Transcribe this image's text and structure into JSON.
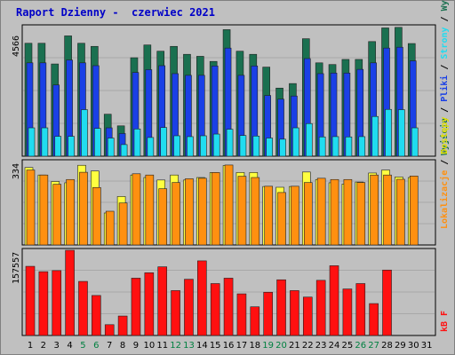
{
  "title": "Raport Dzienny -  czerwiec 2021",
  "colors": {
    "background": "#c0c0c0",
    "title": "#0000c8",
    "visits": "#1a7050",
    "pages": "#1a40e6",
    "hits": "#20dcf0",
    "locations": "#ff9010",
    "accesses": "#ffff40",
    "kb": "#ff1010",
    "weekend_day": "#008040",
    "weekday": "#000000"
  },
  "panel1": {
    "max_label": "4566",
    "legend": [
      "Wyjścia",
      "Pliki",
      "Strony",
      "Wywołania"
    ],
    "legend_colors": [
      "#1a7050",
      "#1a40e6",
      "#20dcf0",
      "#1a7050"
    ]
  },
  "panel2": {
    "max_label": "334",
    "legend": [
      "Lokalizacje",
      "Dostępy"
    ],
    "legend_colors": [
      "#ff9010",
      "#e0e000"
    ]
  },
  "panel3": {
    "max_label": "157557",
    "legend": [
      "kB F"
    ],
    "legend_colors": [
      "#ff1010"
    ]
  },
  "chart_data": [
    {
      "type": "bar",
      "title": "Raport Dzienny -  czerwiec 2021",
      "ymax": 4566,
      "categories": [
        "1",
        "2",
        "3",
        "4",
        "5",
        "6",
        "7",
        "8",
        "9",
        "10",
        "11",
        "12",
        "13",
        "14",
        "15",
        "16",
        "17",
        "18",
        "19",
        "20",
        "21",
        "22",
        "23",
        "24",
        "25",
        "26",
        "27",
        "28",
        "29",
        "30",
        "31"
      ],
      "series": [
        {
          "name": "Wywołania",
          "values": [
            3980,
            3980,
            3250,
            4240,
            3980,
            3870,
            1480,
            1070,
            3470,
            3920,
            3700,
            3870,
            3590,
            3520,
            3340,
            4460,
            3700,
            3590,
            3140,
            2400,
            2560,
            4140,
            3290,
            3230,
            3410,
            3410,
            4040,
            4520,
            4540,
            3970,
            null
          ]
        },
        {
          "name": "Pliki",
          "values": [
            3290,
            3290,
            2510,
            3390,
            3290,
            3190,
            1000,
            800,
            2950,
            3050,
            3190,
            2910,
            2850,
            2850,
            3180,
            3810,
            2850,
            3180,
            2140,
            2010,
            2120,
            3440,
            2910,
            2930,
            2930,
            3060,
            3290,
            3810,
            3840,
            3360,
            null
          ]
        },
        {
          "name": "Strony",
          "values": [
            1000,
            1000,
            700,
            700,
            1640,
            980,
            640,
            410,
            960,
            660,
            1010,
            720,
            690,
            720,
            780,
            950,
            730,
            710,
            640,
            600,
            1000,
            1150,
            680,
            690,
            680,
            690,
            1400,
            1650,
            1640,
            1000,
            null
          ]
        }
      ]
    },
    {
      "type": "bar",
      "ymax": 334,
      "categories": [
        "1",
        "2",
        "3",
        "4",
        "5",
        "6",
        "7",
        "8",
        "9",
        "10",
        "11",
        "12",
        "13",
        "14",
        "15",
        "16",
        "17",
        "18",
        "19",
        "20",
        "21",
        "22",
        "23",
        "24",
        "25",
        "26",
        "27",
        "28",
        "29",
        "30",
        "31"
      ],
      "series": [
        {
          "name": "Dostępy",
          "values": [
            310,
            280,
            254,
            249,
            319,
            296,
            128,
            194,
            280,
            270,
            260,
            280,
            260,
            270,
            290,
            318,
            290,
            290,
            234,
            231,
            234,
            292,
            262,
            249,
            244,
            252,
            288,
            300,
            272,
            270,
            null
          ]
        },
        {
          "name": "Lokalizacje",
          "values": [
            300,
            280,
            243,
            262,
            291,
            230,
            135,
            168,
            285,
            280,
            225,
            250,
            265,
            267,
            290,
            320,
            275,
            270,
            235,
            210,
            235,
            250,
            267,
            262,
            262,
            250,
            280,
            280,
            263,
            276,
            null
          ]
        }
      ]
    },
    {
      "type": "bar",
      "ymax": 157557,
      "categories": [
        "1",
        "2",
        "3",
        "4",
        "5",
        "6",
        "7",
        "8",
        "9",
        "10",
        "11",
        "12",
        "13",
        "14",
        "15",
        "16",
        "17",
        "18",
        "19",
        "20",
        "21",
        "22",
        "23",
        "24",
        "25",
        "26",
        "27",
        "28",
        "29",
        "30",
        "31"
      ],
      "series": [
        {
          "name": "kB F",
          "values": [
            127900,
            118000,
            120000,
            157557,
            100000,
            74000,
            20000,
            36000,
            106000,
            116000,
            127000,
            83000,
            104000,
            138000,
            96000,
            106000,
            77000,
            53000,
            80000,
            103000,
            83000,
            71000,
            102000,
            129000,
            86000,
            96000,
            59000,
            121000,
            null,
            null,
            null
          ]
        }
      ]
    }
  ],
  "days": [
    "1",
    "2",
    "3",
    "4",
    "5",
    "6",
    "7",
    "8",
    "9",
    "10",
    "11",
    "12",
    "13",
    "14",
    "15",
    "16",
    "17",
    "18",
    "19",
    "20",
    "21",
    "22",
    "23",
    "24",
    "25",
    "26",
    "27",
    "28",
    "29",
    "30",
    "31"
  ],
  "weekend_days": [
    "5",
    "6",
    "12",
    "13",
    "19",
    "20",
    "26",
    "27"
  ]
}
